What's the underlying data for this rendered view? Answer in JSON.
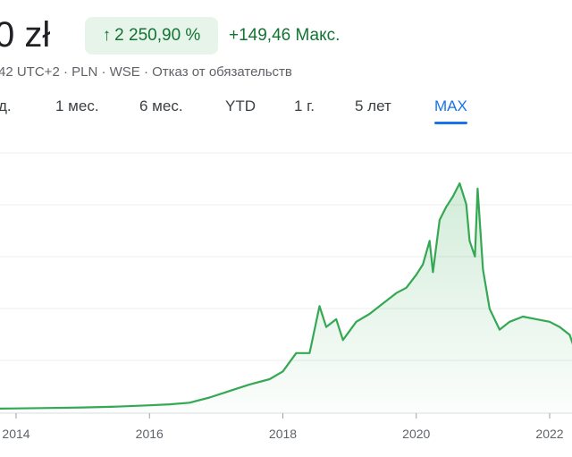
{
  "header": {
    "price": "0 zł",
    "change_percent": "2 250,90 %",
    "change_arrow_icon": "arrow-up-icon",
    "change_abs": "+149,46 Макс.",
    "meta": "42 UTC+2 · PLN · WSE · Отказ от обязательств"
  },
  "tabs": [
    {
      "label": "д."
    },
    {
      "label": "1 мес."
    },
    {
      "label": "6 мес."
    },
    {
      "label": "YTD"
    },
    {
      "label": "1 г."
    },
    {
      "label": "5 лет"
    },
    {
      "label": "MAX",
      "active": true
    }
  ],
  "colors": {
    "line": "#34a853",
    "chip_bg": "#e6f4ea",
    "positive_text": "#137333",
    "active_tab": "#1a73e8"
  },
  "chart_data": {
    "type": "area",
    "x_tick_labels": [
      "2014",
      "2016",
      "2018",
      "2020",
      "2022"
    ],
    "grid": true,
    "series": [
      {
        "x": [
          2013.5,
          2014.0,
          2014.5,
          2015.0,
          2015.5,
          2016.0,
          2016.3,
          2016.6,
          2016.9,
          2017.2,
          2017.5,
          2017.8,
          2018.0,
          2018.2,
          2018.4,
          2018.55,
          2018.65,
          2018.8,
          2018.9,
          2019.1,
          2019.3,
          2019.5,
          2019.7,
          2019.85,
          2020.0,
          2020.1,
          2020.2,
          2020.25,
          2020.35,
          2020.45,
          2020.55,
          2020.65,
          2020.75,
          2020.8,
          2020.88,
          2020.92,
          2021.0,
          2021.1,
          2021.25,
          2021.4,
          2021.6,
          2021.8,
          2022.0,
          2022.15,
          2022.3,
          2022.38
        ],
        "y": [
          1.7,
          1.8,
          2.0,
          2.2,
          2.5,
          3.0,
          3.4,
          4.0,
          6.0,
          8.5,
          11.0,
          13.0,
          16.0,
          23.0,
          23.0,
          41.0,
          33.0,
          36.0,
          28.0,
          35.0,
          38.0,
          42.0,
          46.0,
          48.0,
          53.0,
          57.0,
          66.0,
          54.0,
          74.0,
          79.0,
          83.0,
          88.0,
          80.0,
          66.0,
          60.0,
          86.0,
          55.0,
          40.0,
          32.0,
          35.0,
          37.0,
          36.0,
          35.0,
          33.0,
          30.0,
          24.0
        ]
      }
    ]
  }
}
